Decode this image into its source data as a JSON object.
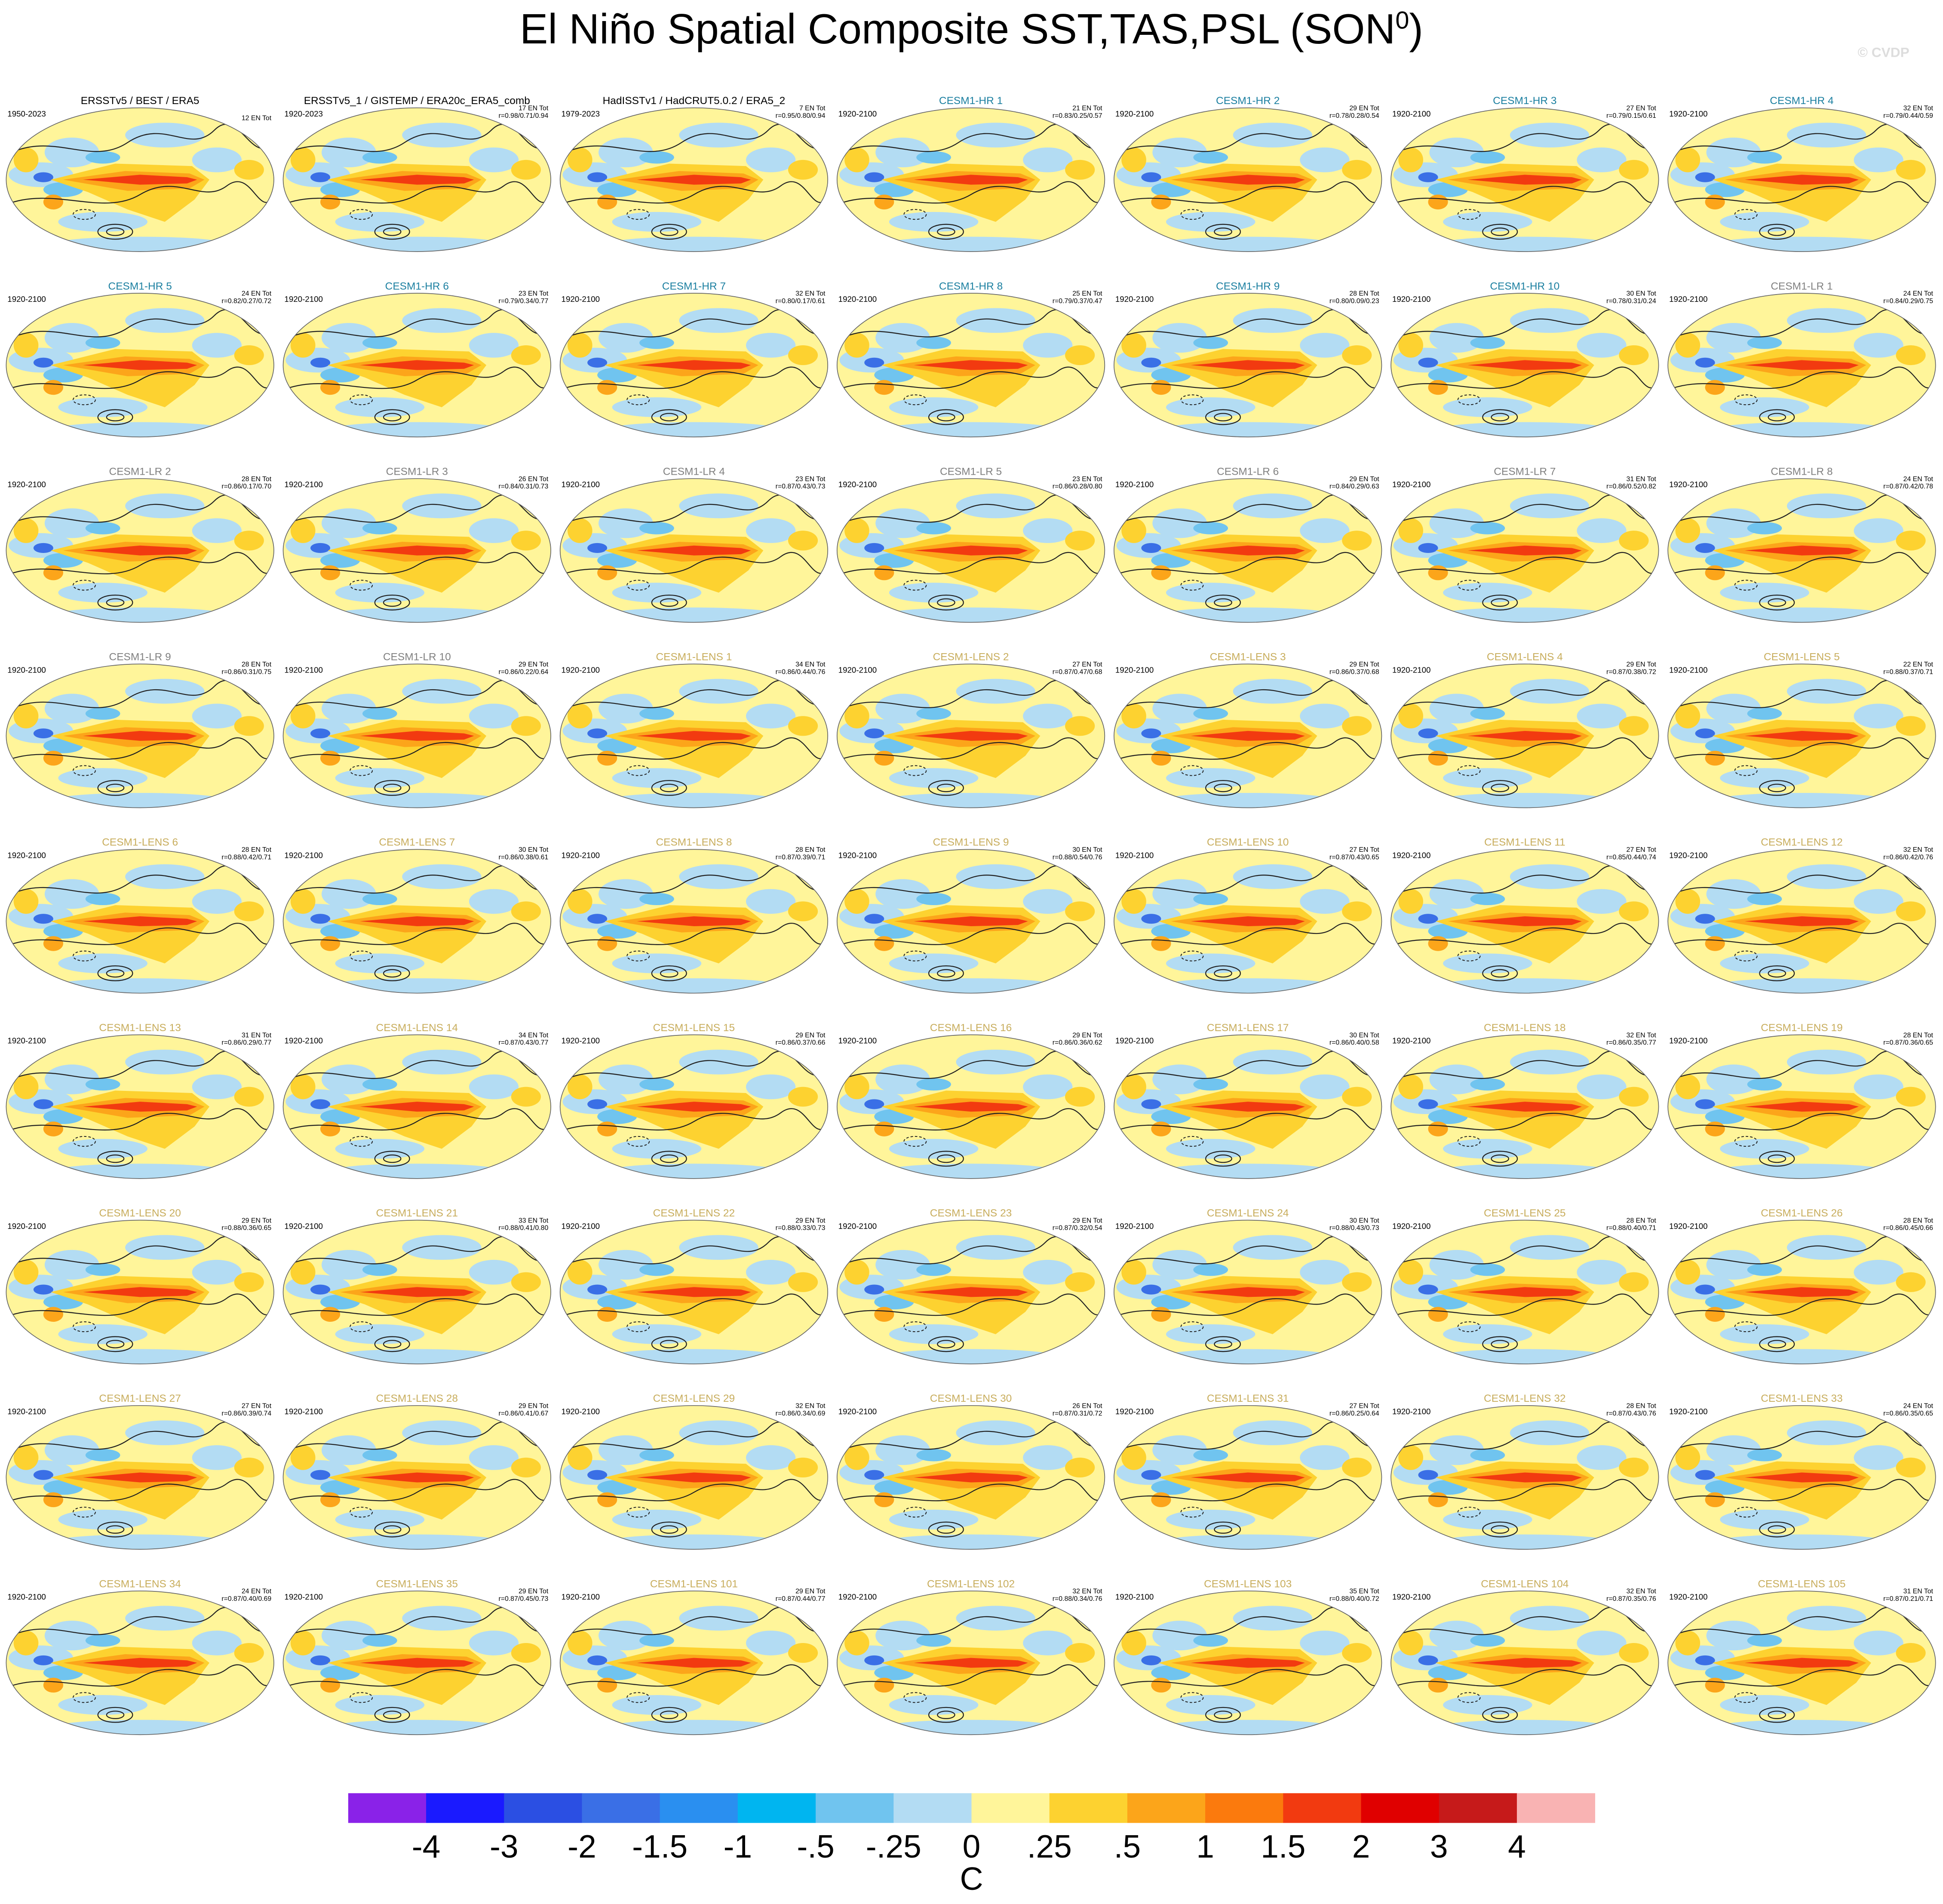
{
  "header": {
    "title": "El Niño Spatial Composite SST,TAS,PSL (SON",
    "title_superscript": "0",
    "title_end": ")",
    "watermark": "© CVDP"
  },
  "panels": [
    {
      "title": "ERSSTv5 / BEST / ERA5",
      "color": "#000000",
      "period": "1950-2023",
      "count": "12 EN Tot"
    },
    {
      "title": "ERSSTv5_1 / GISTEMP / ERA20c_ERA5_comb",
      "color": "#000000",
      "period": "1920-2023",
      "count": "17 EN Tot",
      "r": "r=0.98/0.71/0.94"
    },
    {
      "title": "HadISSTv1 / HadCRUT5.0.2 / ERA5_2",
      "color": "#000000",
      "period": "1979-2023",
      "count": "7 EN Tot",
      "r": "r=0.95/0.80/0.94"
    },
    {
      "title": "CESM1-HR 1",
      "color": "#1b7fa0",
      "period": "1920-2100",
      "count": "21 EN Tot",
      "r": "r=0.83/0.25/0.57"
    },
    {
      "title": "CESM1-HR 2",
      "color": "#1b7fa0",
      "period": "1920-2100",
      "count": "29 EN Tot",
      "r": "r=0.78/0.28/0.54"
    },
    {
      "title": "CESM1-HR 3",
      "color": "#1b7fa0",
      "period": "1920-2100",
      "count": "27 EN Tot",
      "r": "r=0.79/0.15/0.61"
    },
    {
      "title": "CESM1-HR 4",
      "color": "#1b7fa0",
      "period": "1920-2100",
      "count": "32 EN Tot",
      "r": "r=0.79/0.44/0.59"
    },
    {
      "title": "CESM1-HR 5",
      "color": "#1b7fa0",
      "period": "1920-2100",
      "count": "24 EN Tot",
      "r": "r=0.82/0.27/0.72"
    },
    {
      "title": "CESM1-HR 6",
      "color": "#1b7fa0",
      "period": "1920-2100",
      "count": "23 EN Tot",
      "r": "r=0.79/0.34/0.77"
    },
    {
      "title": "CESM1-HR 7",
      "color": "#1b7fa0",
      "period": "1920-2100",
      "count": "32 EN Tot",
      "r": "r=0.80/0.17/0.61"
    },
    {
      "title": "CESM1-HR 8",
      "color": "#1b7fa0",
      "period": "1920-2100",
      "count": "25 EN Tot",
      "r": "r=0.79/0.37/0.47"
    },
    {
      "title": "CESM1-HR 9",
      "color": "#1b7fa0",
      "period": "1920-2100",
      "count": "28 EN Tot",
      "r": "r=0.80/0.09/0.23"
    },
    {
      "title": "CESM1-HR 10",
      "color": "#1b7fa0",
      "period": "1920-2100",
      "count": "30 EN Tot",
      "r": "r=0.78/0.31/0.24"
    },
    {
      "title": "CESM1-LR 1",
      "color": "#808080",
      "period": "1920-2100",
      "count": "24 EN Tot",
      "r": "r=0.84/0.29/0.75"
    },
    {
      "title": "CESM1-LR 2",
      "color": "#808080",
      "period": "1920-2100",
      "count": "28 EN Tot",
      "r": "r=0.86/0.17/0.70"
    },
    {
      "title": "CESM1-LR 3",
      "color": "#808080",
      "period": "1920-2100",
      "count": "26 EN Tot",
      "r": "r=0.84/0.31/0.73"
    },
    {
      "title": "CESM1-LR 4",
      "color": "#808080",
      "period": "1920-2100",
      "count": "23 EN Tot",
      "r": "r=0.87/0.43/0.73"
    },
    {
      "title": "CESM1-LR 5",
      "color": "#808080",
      "period": "1920-2100",
      "count": "23 EN Tot",
      "r": "r=0.86/0.28/0.80"
    },
    {
      "title": "CESM1-LR 6",
      "color": "#808080",
      "period": "1920-2100",
      "count": "29 EN Tot",
      "r": "r=0.84/0.29/0.63"
    },
    {
      "title": "CESM1-LR 7",
      "color": "#808080",
      "period": "1920-2100",
      "count": "31 EN Tot",
      "r": "r=0.86/0.52/0.82"
    },
    {
      "title": "CESM1-LR 8",
      "color": "#808080",
      "period": "1920-2100",
      "count": "24 EN Tot",
      "r": "r=0.87/0.42/0.78"
    },
    {
      "title": "CESM1-LR 9",
      "color": "#808080",
      "period": "1920-2100",
      "count": "28 EN Tot",
      "r": "r=0.86/0.31/0.75"
    },
    {
      "title": "CESM1-LR 10",
      "color": "#808080",
      "period": "1920-2100",
      "count": "29 EN Tot",
      "r": "r=0.86/0.22/0.64"
    },
    {
      "title": "CESM1-LENS 1",
      "color": "#c8ad5c",
      "period": "1920-2100",
      "count": "34 EN Tot",
      "r": "r=0.86/0.44/0.76"
    },
    {
      "title": "CESM1-LENS 2",
      "color": "#c8ad5c",
      "period": "1920-2100",
      "count": "27 EN Tot",
      "r": "r=0.87/0.47/0.68"
    },
    {
      "title": "CESM1-LENS 3",
      "color": "#c8ad5c",
      "period": "1920-2100",
      "count": "29 EN Tot",
      "r": "r=0.86/0.37/0.68"
    },
    {
      "title": "CESM1-LENS 4",
      "color": "#c8ad5c",
      "period": "1920-2100",
      "count": "29 EN Tot",
      "r": "r=0.87/0.38/0.72"
    },
    {
      "title": "CESM1-LENS 5",
      "color": "#c8ad5c",
      "period": "1920-2100",
      "count": "22 EN Tot",
      "r": "r=0.88/0.37/0.71"
    },
    {
      "title": "CESM1-LENS 6",
      "color": "#c8ad5c",
      "period": "1920-2100",
      "count": "28 EN Tot",
      "r": "r=0.88/0.42/0.71"
    },
    {
      "title": "CESM1-LENS 7",
      "color": "#c8ad5c",
      "period": "1920-2100",
      "count": "30 EN Tot",
      "r": "r=0.86/0.38/0.61"
    },
    {
      "title": "CESM1-LENS 8",
      "color": "#c8ad5c",
      "period": "1920-2100",
      "count": "28 EN Tot",
      "r": "r=0.87/0.39/0.71"
    },
    {
      "title": "CESM1-LENS 9",
      "color": "#c8ad5c",
      "period": "1920-2100",
      "count": "30 EN Tot",
      "r": "r=0.88/0.54/0.76"
    },
    {
      "title": "CESM1-LENS 10",
      "color": "#c8ad5c",
      "period": "1920-2100",
      "count": "27 EN Tot",
      "r": "r=0.87/0.43/0.65"
    },
    {
      "title": "CESM1-LENS 11",
      "color": "#c8ad5c",
      "period": "1920-2100",
      "count": "27 EN Tot",
      "r": "r=0.85/0.44/0.74"
    },
    {
      "title": "CESM1-LENS 12",
      "color": "#c8ad5c",
      "period": "1920-2100",
      "count": "32 EN Tot",
      "r": "r=0.86/0.42/0.76"
    },
    {
      "title": "CESM1-LENS 13",
      "color": "#c8ad5c",
      "period": "1920-2100",
      "count": "31 EN Tot",
      "r": "r=0.86/0.29/0.77"
    },
    {
      "title": "CESM1-LENS 14",
      "color": "#c8ad5c",
      "period": "1920-2100",
      "count": "34 EN Tot",
      "r": "r=0.87/0.43/0.77"
    },
    {
      "title": "CESM1-LENS 15",
      "color": "#c8ad5c",
      "period": "1920-2100",
      "count": "29 EN Tot",
      "r": "r=0.86/0.37/0.66"
    },
    {
      "title": "CESM1-LENS 16",
      "color": "#c8ad5c",
      "period": "1920-2100",
      "count": "29 EN Tot",
      "r": "r=0.86/0.36/0.62"
    },
    {
      "title": "CESM1-LENS 17",
      "color": "#c8ad5c",
      "period": "1920-2100",
      "count": "30 EN Tot",
      "r": "r=0.86/0.40/0.58"
    },
    {
      "title": "CESM1-LENS 18",
      "color": "#c8ad5c",
      "period": "1920-2100",
      "count": "32 EN Tot",
      "r": "r=0.86/0.35/0.77"
    },
    {
      "title": "CESM1-LENS 19",
      "color": "#c8ad5c",
      "period": "1920-2100",
      "count": "28 EN Tot",
      "r": "r=0.87/0.36/0.65"
    },
    {
      "title": "CESM1-LENS 20",
      "color": "#c8ad5c",
      "period": "1920-2100",
      "count": "29 EN Tot",
      "r": "r=0.88/0.36/0.65"
    },
    {
      "title": "CESM1-LENS 21",
      "color": "#c8ad5c",
      "period": "1920-2100",
      "count": "33 EN Tot",
      "r": "r=0.88/0.41/0.80"
    },
    {
      "title": "CESM1-LENS 22",
      "color": "#c8ad5c",
      "period": "1920-2100",
      "count": "29 EN Tot",
      "r": "r=0.88/0.33/0.73"
    },
    {
      "title": "CESM1-LENS 23",
      "color": "#c8ad5c",
      "period": "1920-2100",
      "count": "29 EN Tot",
      "r": "r=0.87/0.32/0.54"
    },
    {
      "title": "CESM1-LENS 24",
      "color": "#c8ad5c",
      "period": "1920-2100",
      "count": "30 EN Tot",
      "r": "r=0.88/0.43/0.73"
    },
    {
      "title": "CESM1-LENS 25",
      "color": "#c8ad5c",
      "period": "1920-2100",
      "count": "28 EN Tot",
      "r": "r=0.88/0.40/0.71"
    },
    {
      "title": "CESM1-LENS 26",
      "color": "#c8ad5c",
      "period": "1920-2100",
      "count": "28 EN Tot",
      "r": "r=0.86/0.45/0.66"
    },
    {
      "title": "CESM1-LENS 27",
      "color": "#c8ad5c",
      "period": "1920-2100",
      "count": "27 EN Tot",
      "r": "r=0.86/0.39/0.74"
    },
    {
      "title": "CESM1-LENS 28",
      "color": "#c8ad5c",
      "period": "1920-2100",
      "count": "29 EN Tot",
      "r": "r=0.86/0.41/0.67"
    },
    {
      "title": "CESM1-LENS 29",
      "color": "#c8ad5c",
      "period": "1920-2100",
      "count": "32 EN Tot",
      "r": "r=0.86/0.34/0.69"
    },
    {
      "title": "CESM1-LENS 30",
      "color": "#c8ad5c",
      "period": "1920-2100",
      "count": "26 EN Tot",
      "r": "r=0.87/0.31/0.72"
    },
    {
      "title": "CESM1-LENS 31",
      "color": "#c8ad5c",
      "period": "1920-2100",
      "count": "27 EN Tot",
      "r": "r=0.86/0.25/0.64"
    },
    {
      "title": "CESM1-LENS 32",
      "color": "#c8ad5c",
      "period": "1920-2100",
      "count": "28 EN Tot",
      "r": "r=0.87/0.43/0.76"
    },
    {
      "title": "CESM1-LENS 33",
      "color": "#c8ad5c",
      "period": "1920-2100",
      "count": "24 EN Tot",
      "r": "r=0.86/0.35/0.65"
    },
    {
      "title": "CESM1-LENS 34",
      "color": "#c8ad5c",
      "period": "1920-2100",
      "count": "24 EN Tot",
      "r": "r=0.87/0.40/0.69"
    },
    {
      "title": "CESM1-LENS 35",
      "color": "#c8ad5c",
      "period": "1920-2100",
      "count": "29 EN Tot",
      "r": "r=0.87/0.45/0.73"
    },
    {
      "title": "CESM1-LENS 101",
      "color": "#c8ad5c",
      "period": "1920-2100",
      "count": "29 EN Tot",
      "r": "r=0.87/0.44/0.77"
    },
    {
      "title": "CESM1-LENS 102",
      "color": "#c8ad5c",
      "period": "1920-2100",
      "count": "32 EN Tot",
      "r": "r=0.88/0.34/0.76"
    },
    {
      "title": "CESM1-LENS 103",
      "color": "#c8ad5c",
      "period": "1920-2100",
      "count": "35 EN Tot",
      "r": "r=0.88/0.40/0.72"
    },
    {
      "title": "CESM1-LENS 104",
      "color": "#c8ad5c",
      "period": "1920-2100",
      "count": "32 EN Tot",
      "r": "r=0.87/0.35/0.76"
    },
    {
      "title": "CESM1-LENS 105",
      "color": "#c8ad5c",
      "period": "1920-2100",
      "count": "31 EN Tot",
      "r": "r=0.87/0.21/0.71"
    }
  ],
  "colorbar": {
    "colors": [
      "#8a22e8",
      "#1a1aff",
      "#2b4fe3",
      "#3a6fe6",
      "#2a8ff0",
      "#00b5f0",
      "#70c4ef",
      "#b3dcf3",
      "#fff59a",
      "#fdd230",
      "#fca51a",
      "#fb7a0d",
      "#f23a10",
      "#e00000",
      "#c61a1a",
      "#f9b3b3"
    ],
    "labels": [
      "-4",
      "-3",
      "-2",
      "-1.5",
      "-1",
      "-.5",
      "-.25",
      "0",
      ".25",
      ".5",
      "1",
      "1.5",
      "2",
      "3",
      "4"
    ],
    "unit": "C"
  }
}
